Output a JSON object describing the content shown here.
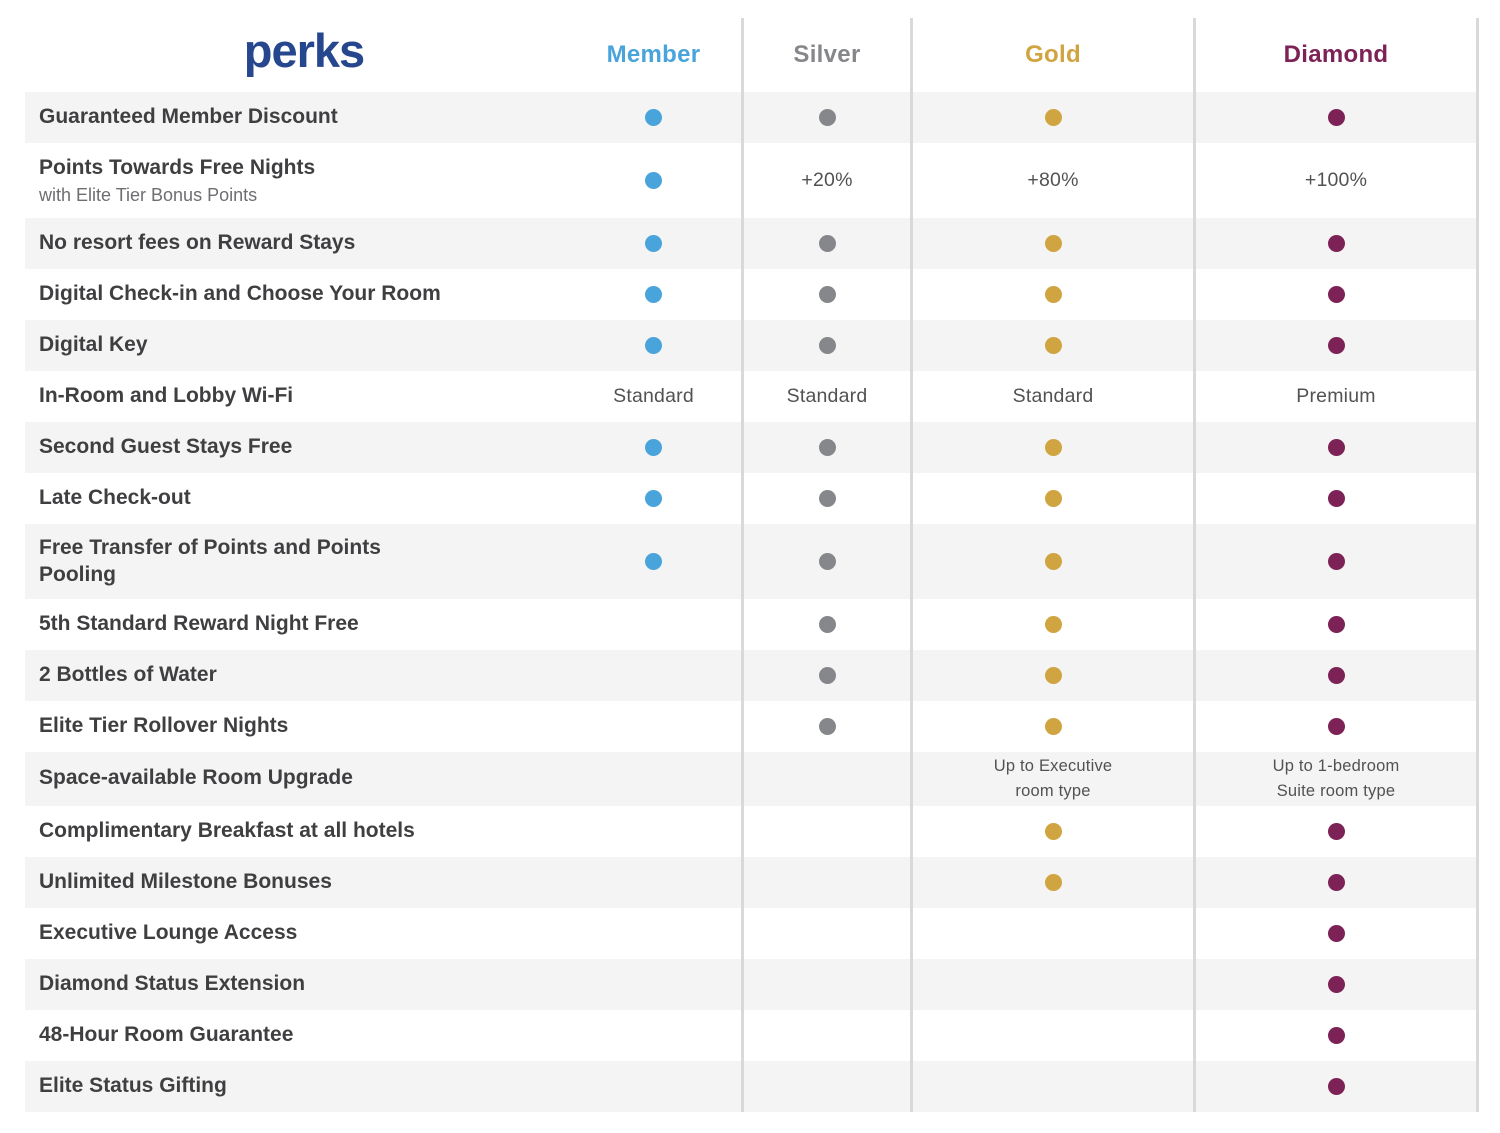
{
  "colors": {
    "title": "#26478d",
    "row_alt_bg": "#f4f4f4",
    "divider": "#d9d9d9",
    "label_text": "#3f3f41",
    "sublabel_text": "#6d6e71",
    "value_text": "#525254"
  },
  "icons": {
    "included_marker": "filled-circle-dot"
  },
  "chart_data": {
    "type": "table",
    "title": "perks",
    "columns": [
      {
        "key": "member",
        "label": "Member",
        "color": "#4aa4dc"
      },
      {
        "key": "silver",
        "label": "Silver",
        "color": "#85878a"
      },
      {
        "key": "gold",
        "label": "Gold",
        "color": "#d0a440"
      },
      {
        "key": "diamond",
        "label": "Diamond",
        "color": "#7c2256"
      }
    ],
    "rows": [
      {
        "label": "Guaranteed Member Discount",
        "cells": [
          "dot",
          "dot",
          "dot",
          "dot"
        ]
      },
      {
        "label": "Points Towards Free Nights",
        "sublabel": "with Elite Tier Bonus Points",
        "cells": [
          "dot",
          "+20%",
          "+80%",
          "+100%"
        ]
      },
      {
        "label": "No resort fees on Reward Stays",
        "cells": [
          "dot",
          "dot",
          "dot",
          "dot"
        ]
      },
      {
        "label": "Digital Check-in and Choose Your Room",
        "cells": [
          "dot",
          "dot",
          "dot",
          "dot"
        ]
      },
      {
        "label": "Digital Key",
        "cells": [
          "dot",
          "dot",
          "dot",
          "dot"
        ]
      },
      {
        "label": "In-Room and Lobby Wi-Fi",
        "cells": [
          "Standard",
          "Standard",
          "Standard",
          "Premium"
        ]
      },
      {
        "label": "Second Guest Stays Free",
        "cells": [
          "dot",
          "dot",
          "dot",
          "dot"
        ]
      },
      {
        "label": "Late Check-out",
        "cells": [
          "dot",
          "dot",
          "dot",
          "dot"
        ]
      },
      {
        "label": "Free Transfer of Points and Points\nPooling",
        "cells": [
          "dot",
          "dot",
          "dot",
          "dot"
        ]
      },
      {
        "label": "5th Standard Reward Night Free",
        "cells": [
          "",
          "dot",
          "dot",
          "dot"
        ]
      },
      {
        "label": "2 Bottles of Water",
        "cells": [
          "",
          "dot",
          "dot",
          "dot"
        ]
      },
      {
        "label": "Elite Tier Rollover Nights",
        "cells": [
          "",
          "dot",
          "dot",
          "dot"
        ]
      },
      {
        "label": "Space-available Room Upgrade",
        "cells": [
          "",
          "",
          "Up to Executive\nroom type",
          "Up to 1-bedroom\nSuite room type"
        ]
      },
      {
        "label": "Complimentary Breakfast at all hotels",
        "cells": [
          "",
          "",
          "dot",
          "dot"
        ]
      },
      {
        "label": "Unlimited Milestone Bonuses",
        "cells": [
          "",
          "",
          "dot",
          "dot"
        ]
      },
      {
        "label": "Executive Lounge Access",
        "cells": [
          "",
          "",
          "",
          "dot"
        ]
      },
      {
        "label": "Diamond Status Extension",
        "cells": [
          "",
          "",
          "",
          "dot"
        ]
      },
      {
        "label": "48-Hour Room Guarantee",
        "cells": [
          "",
          "",
          "",
          "dot"
        ]
      },
      {
        "label": "Elite Status Gifting",
        "cells": [
          "",
          "",
          "",
          "dot"
        ]
      }
    ]
  }
}
